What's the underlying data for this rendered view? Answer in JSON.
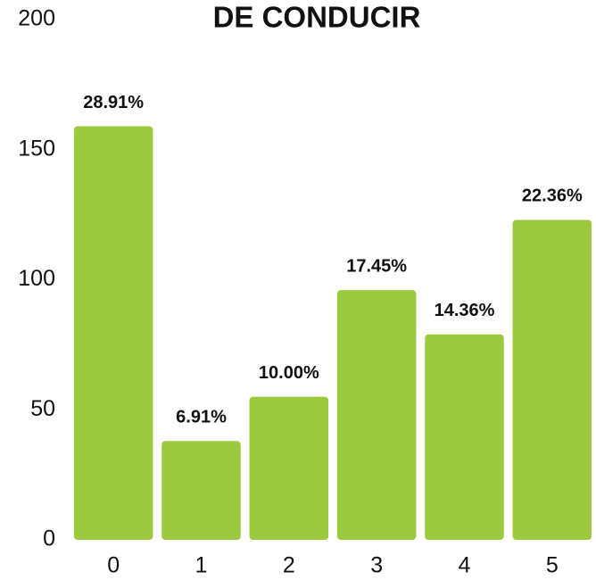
{
  "chart_data": {
    "type": "bar",
    "title": "DE CONDUCIR",
    "categories": [
      "0",
      "1",
      "2",
      "3",
      "4",
      "5"
    ],
    "values": [
      159,
      38,
      55,
      96,
      79,
      123
    ],
    "bar_labels": [
      "28.91%",
      "6.91%",
      "10.00%",
      "17.45%",
      "14.36%",
      "22.36%"
    ],
    "color": "#9bca3e",
    "ylim": [
      0,
      200
    ],
    "yticks": [
      0,
      50,
      100,
      150,
      200
    ],
    "grid": false
  }
}
